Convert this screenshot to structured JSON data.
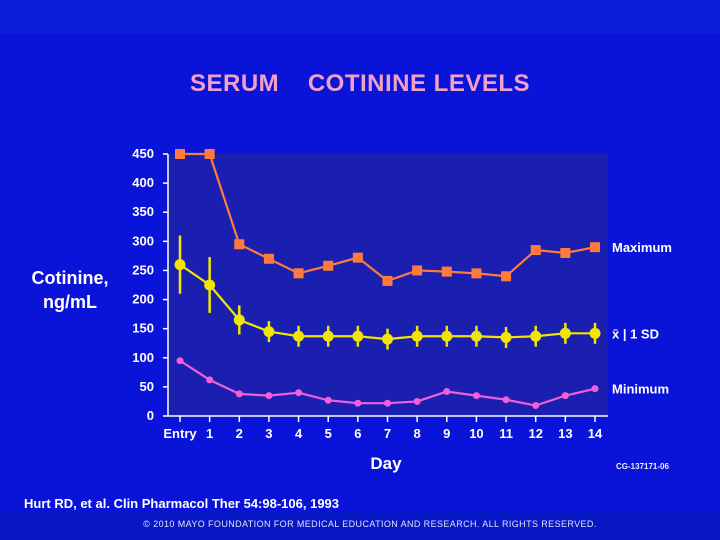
{
  "slide": {
    "title": "SERUM    COTININE LEVELS",
    "citation": "Hurt RD, et al. Clin Pharmacol Ther 54:98-106, 1993",
    "footer": "© 2010 MAYO FOUNDATION FOR MEDICAL EDUCATION AND RESEARCH. ALL RIGHTS RESERVED.",
    "code": "CG-137171-06",
    "ylabel_line1": "Cotinine,",
    "ylabel_line2": "ng/mL"
  },
  "chart_data": {
    "type": "line",
    "title": "SERUM    COTININE LEVELS",
    "xlabel": "Day",
    "ylabel": "Cotinine, ng/mL",
    "categories": [
      "Entry",
      "1",
      "2",
      "3",
      "4",
      "5",
      "6",
      "7",
      "8",
      "9",
      "10",
      "11",
      "12",
      "13",
      "14"
    ],
    "ylim": [
      0,
      450
    ],
    "yticks": [
      0,
      50,
      100,
      150,
      200,
      250,
      300,
      350,
      400,
      450
    ],
    "grid": false,
    "series": [
      {
        "name": "Maximum",
        "color": "#ff7a3c",
        "marker": "square",
        "values": [
          450,
          450,
          295,
          270,
          245,
          258,
          272,
          232,
          250,
          248,
          245,
          240,
          285,
          280,
          290
        ]
      },
      {
        "name": "x̄ | 1 SD",
        "color": "#f2e600",
        "marker": "circle",
        "values": [
          260,
          225,
          165,
          145,
          137,
          137,
          137,
          132,
          137,
          137,
          137,
          135,
          137,
          142,
          142
        ],
        "sd": [
          50,
          48,
          25,
          18,
          18,
          18,
          18,
          18,
          18,
          18,
          18,
          18,
          18,
          18,
          18
        ]
      },
      {
        "name": "Minimum",
        "color": "#f060d8",
        "marker": "circle",
        "values": [
          95,
          62,
          38,
          35,
          40,
          27,
          22,
          22,
          25,
          42,
          35,
          28,
          18,
          35,
          47
        ]
      }
    ]
  }
}
